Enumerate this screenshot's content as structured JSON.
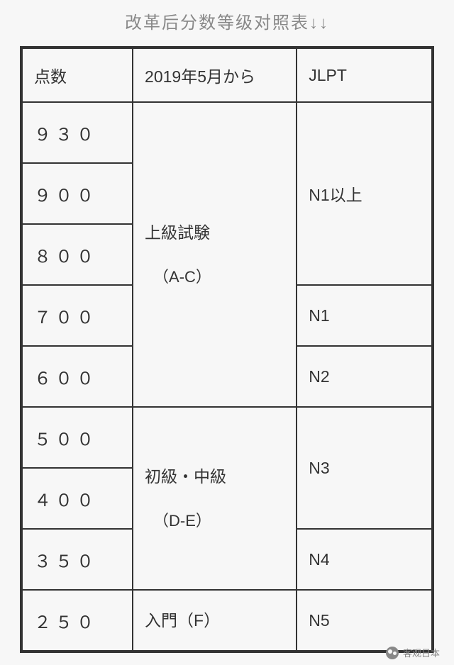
{
  "title": "改革后分数等级对照表↓↓",
  "headers": {
    "score": "点数",
    "level": "2019年5月から",
    "jlpt": "JLPT"
  },
  "scores": [
    "９３０",
    "９００",
    "８００",
    "７００",
    "６００",
    "５００",
    "４００",
    "３５０",
    "２５０"
  ],
  "levels": {
    "advanced_line1": "上級試験",
    "advanced_line2": "（A-C）",
    "intermediate_line1": "初級・中級",
    "intermediate_line2": "（D-E）",
    "beginner": "入門（F）"
  },
  "jlpt": {
    "n1plus": "N1以上",
    "n1": "N1",
    "n2": "N2",
    "n3": "N3",
    "n4": "N4",
    "n5": "N5"
  },
  "footer": {
    "source": "客观日本"
  },
  "colors": {
    "background": "#f7f7f7",
    "border": "#333333",
    "text": "#333333",
    "title_text": "#888888",
    "footer_text": "#888888"
  }
}
